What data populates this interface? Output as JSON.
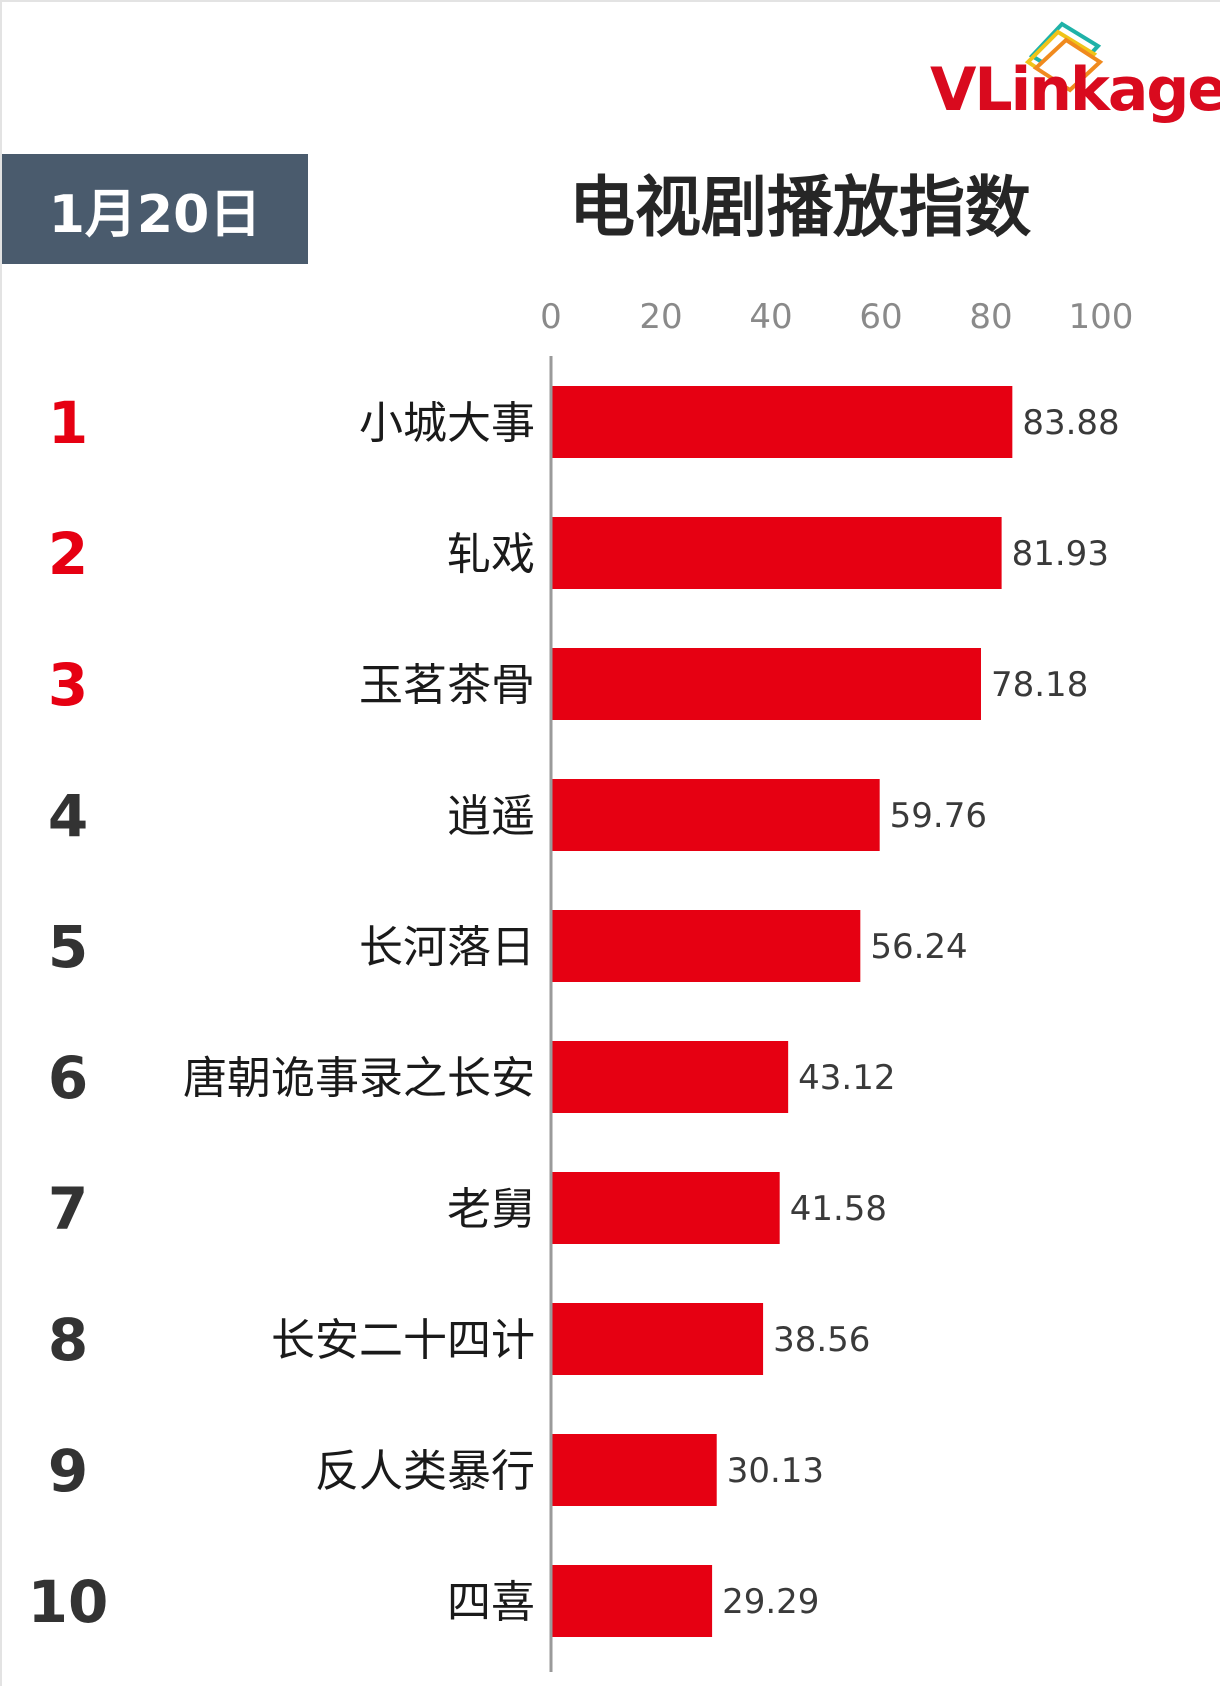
{
  "brand": {
    "name": "VLinkage",
    "colors": {
      "brand_red": "#d90a1e",
      "teal": "#1fb2a8",
      "yellow": "#f0c419",
      "orange": "#f08a1e"
    }
  },
  "header": {
    "date": "1月20日",
    "title": "电视剧播放指数",
    "badge_color": "#4a5b6d"
  },
  "chart_data": {
    "type": "bar",
    "orientation": "horizontal",
    "title": "电视剧播放指数",
    "xlim": [
      0,
      100
    ],
    "xticks": [
      "0",
      "20",
      "40",
      "60",
      "80",
      "100"
    ],
    "grid": false,
    "bar_color": "#e60012",
    "top_rank_color": "#e60012",
    "rank_color": "#333333",
    "ranks": [
      "1",
      "2",
      "3",
      "4",
      "5",
      "6",
      "7",
      "8",
      "9",
      "10"
    ],
    "categories": [
      "小城大事",
      "轧戏",
      "玉茗茶骨",
      "逍遥",
      "长河落日",
      "唐朝诡事录之长安",
      "老舅",
      "长安二十四计",
      "反人类暴行",
      "四喜"
    ],
    "values": [
      83.88,
      81.93,
      78.18,
      59.76,
      56.24,
      43.12,
      41.58,
      38.56,
      30.13,
      29.29
    ],
    "value_labels": [
      "83.88",
      "81.93",
      "78.18",
      "59.76",
      "56.24",
      "43.12",
      "41.58",
      "38.56",
      "30.13",
      "29.29"
    ]
  }
}
